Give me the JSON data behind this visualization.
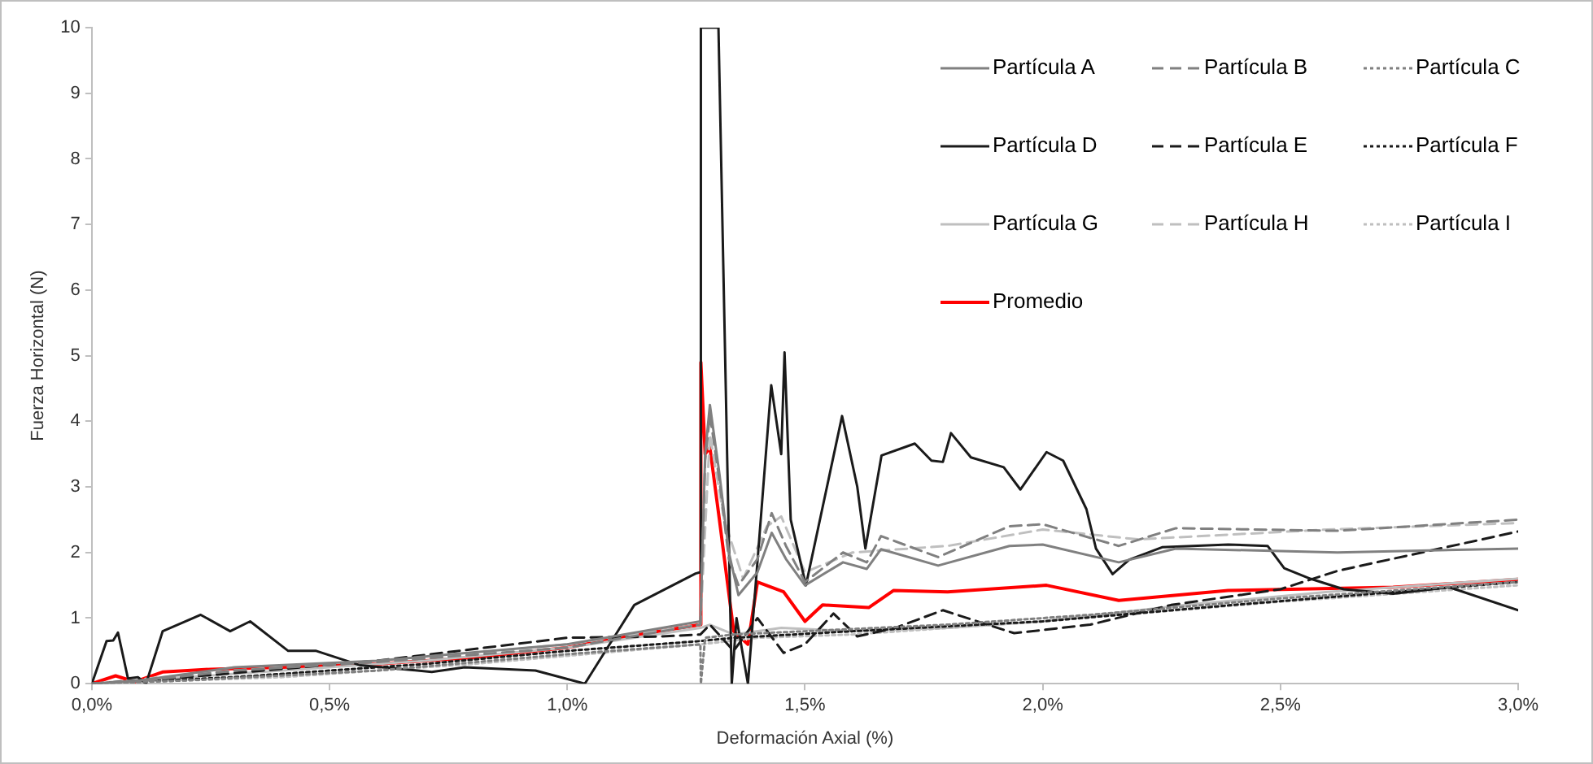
{
  "chart_data": {
    "type": "line",
    "xlabel": "Deformación Axial (%)",
    "ylabel": "Fuerza Horizontal (N)",
    "xlim": [
      0,
      3
    ],
    "ylim": [
      0,
      10
    ],
    "xticks": [
      {
        "value": 0,
        "label": "0,0%"
      },
      {
        "value": 0.5,
        "label": "0,5%"
      },
      {
        "value": 1,
        "label": "1,0%"
      },
      {
        "value": 1.5,
        "label": "1,5%"
      },
      {
        "value": 2,
        "label": "2,0%"
      },
      {
        "value": 2.5,
        "label": "2,5%"
      },
      {
        "value": 3,
        "label": "3,0%"
      }
    ],
    "yticks": [
      0,
      1,
      2,
      3,
      4,
      5,
      6,
      7,
      8,
      9,
      10
    ],
    "legend": "top right",
    "series": [
      {
        "name": "Partícula A",
        "color": "#808080",
        "line_style": "solid",
        "x": [
          0,
          0.1,
          0.3,
          0.6,
          1.0,
          1.2,
          1.28,
          1.29,
          1.3,
          1.32,
          1.34,
          1.36,
          1.4,
          1.43,
          1.46,
          1.5,
          1.58,
          1.63,
          1.66,
          1.78,
          1.93,
          2.0,
          2.16,
          2.28,
          2.62,
          3.0
        ],
        "values": [
          0,
          0.05,
          0.25,
          0.35,
          0.6,
          0.85,
          0.95,
          3.5,
          4.25,
          3.2,
          2.0,
          1.35,
          1.7,
          2.3,
          1.9,
          1.5,
          1.85,
          1.75,
          2.05,
          1.8,
          2.1,
          2.12,
          1.85,
          2.06,
          2.0,
          2.06
        ]
      },
      {
        "name": "Partícula B",
        "color": "#808080",
        "line_style": "dashed",
        "x": [
          0,
          0.1,
          0.3,
          0.6,
          1.0,
          1.2,
          1.28,
          1.29,
          1.3,
          1.32,
          1.34,
          1.36,
          1.4,
          1.43,
          1.46,
          1.5,
          1.58,
          1.63,
          1.66,
          1.78,
          1.93,
          2.0,
          2.16,
          2.28,
          2.62,
          3.0
        ],
        "values": [
          0,
          0.04,
          0.2,
          0.33,
          0.55,
          0.8,
          0.9,
          3.4,
          4.1,
          3.1,
          1.9,
          1.5,
          1.9,
          2.6,
          2.1,
          1.55,
          2.0,
          1.85,
          2.25,
          1.93,
          2.4,
          2.43,
          2.1,
          2.37,
          2.33,
          2.5
        ]
      },
      {
        "name": "Partícula C",
        "color": "#808080",
        "line_style": "dotted",
        "x": [
          0,
          0.2,
          0.6,
          1.0,
          1.28,
          1.281,
          1.29,
          1.35,
          1.5,
          1.8,
          2.1,
          2.5,
          3.0
        ],
        "values": [
          0,
          0.05,
          0.2,
          0.45,
          0.6,
          0,
          0.7,
          0.75,
          0.8,
          0.9,
          1.05,
          1.3,
          1.55
        ]
      },
      {
        "name": "Partícula D",
        "color": "#1a1a1a",
        "line_style": "solid",
        "x": [
          0,
          0.031,
          0.045,
          0.055,
          0.076,
          0.097,
          0.114,
          0.149,
          0.229,
          0.291,
          0.333,
          0.413,
          0.472,
          0.565,
          0.715,
          0.784,
          0.933,
          1.037,
          1.141,
          1.27,
          1.28,
          1.281,
          1.3,
          1.318,
          1.346,
          1.356,
          1.38,
          1.429,
          1.45,
          1.457,
          1.47,
          1.502,
          1.578,
          1.61,
          1.627,
          1.661,
          1.731,
          1.766,
          1.79,
          1.807,
          1.849,
          1.918,
          1.953,
          2.008,
          2.043,
          2.092,
          2.112,
          2.147,
          2.182,
          2.251,
          2.39,
          2.473,
          2.508,
          2.563,
          2.633,
          2.737,
          2.855,
          3.0
        ],
        "values": [
          0,
          0.65,
          0.66,
          0.78,
          0.08,
          0.1,
          0,
          0.8,
          1.05,
          0.8,
          0.95,
          0.5,
          0.5,
          0.28,
          0.18,
          0.25,
          0.2,
          0,
          1.2,
          1.68,
          1.7,
          10,
          10,
          10,
          0,
          1.0,
          0,
          4.55,
          3.5,
          5.05,
          2.5,
          1.5,
          4.08,
          3.0,
          2.06,
          3.48,
          3.66,
          3.4,
          3.38,
          3.82,
          3.45,
          3.3,
          2.96,
          3.53,
          3.4,
          2.66,
          2.06,
          1.67,
          1.89,
          2.08,
          2.12,
          2.1,
          1.76,
          1.6,
          1.44,
          1.37,
          1.47,
          1.12
        ]
      },
      {
        "name": "Partícula E",
        "color": "#1a1a1a",
        "line_style": "dashed",
        "x": [
          0,
          0.2,
          0.6,
          1.0,
          1.2,
          1.28,
          1.3,
          1.35,
          1.4,
          1.455,
          1.5,
          1.56,
          1.61,
          1.69,
          1.79,
          1.94,
          2.1,
          2.27,
          2.5,
          2.62,
          3.0
        ],
        "values": [
          0,
          0.1,
          0.35,
          0.7,
          0.72,
          0.75,
          0.9,
          0.5,
          1.0,
          0.47,
          0.6,
          1.07,
          0.72,
          0.85,
          1.12,
          0.77,
          0.9,
          1.2,
          1.44,
          1.72,
          2.32
        ]
      },
      {
        "name": "Partícula F",
        "color": "#1a1a1a",
        "line_style": "dotted",
        "x": [
          0,
          0.3,
          0.7,
          1.0,
          1.28,
          1.35,
          1.6,
          2.0,
          2.4,
          3.0
        ],
        "values": [
          0,
          0.1,
          0.3,
          0.5,
          0.65,
          0.7,
          0.8,
          0.95,
          1.2,
          1.55
        ]
      },
      {
        "name": "Partícula G",
        "color": "#bfbfbf",
        "line_style": "solid",
        "x": [
          0,
          0.3,
          0.7,
          1.0,
          1.28,
          1.3,
          1.35,
          1.45,
          1.6,
          1.8,
          2.0,
          2.3,
          2.6,
          3.0
        ],
        "values": [
          0,
          0.15,
          0.35,
          0.55,
          0.85,
          0.9,
          0.75,
          0.85,
          0.8,
          0.85,
          0.95,
          1.2,
          1.4,
          1.6
        ]
      },
      {
        "name": "Partícula H",
        "color": "#bfbfbf",
        "line_style": "dashed",
        "x": [
          0,
          0.3,
          0.7,
          1.0,
          1.28,
          1.3,
          1.33,
          1.37,
          1.42,
          1.45,
          1.5,
          1.6,
          1.8,
          2.0,
          2.2,
          2.6,
          3.0
        ],
        "values": [
          0,
          0.2,
          0.4,
          0.6,
          0.9,
          3.8,
          2.5,
          1.6,
          2.4,
          2.55,
          1.7,
          2.0,
          2.1,
          2.35,
          2.2,
          2.35,
          2.45
        ]
      },
      {
        "name": "Partícula I",
        "color": "#bfbfbf",
        "line_style": "dotted",
        "x": [
          0,
          0.4,
          0.8,
          1.28,
          1.4,
          1.6,
          2.0,
          2.5,
          3.0
        ],
        "values": [
          0,
          0.1,
          0.3,
          0.6,
          0.7,
          0.75,
          0.95,
          1.25,
          1.5
        ]
      },
      {
        "name": "Promedio",
        "color": "#ff0000",
        "line_style": "solid",
        "x": [
          0,
          0.05,
          0.09,
          0.15,
          0.25,
          0.4,
          0.6,
          0.8,
          1.0,
          1.15,
          1.28,
          1.281,
          1.29,
          1.3,
          1.32,
          1.35,
          1.38,
          1.4,
          1.455,
          1.5,
          1.537,
          1.634,
          1.686,
          1.8,
          2.008,
          2.16,
          2.39,
          2.737,
          3.0
        ],
        "values": [
          0,
          0.12,
          0.03,
          0.18,
          0.22,
          0.25,
          0.3,
          0.4,
          0.55,
          0.75,
          0.9,
          4.9,
          3.5,
          3.6,
          2.5,
          0.8,
          0.6,
          1.55,
          1.4,
          0.95,
          1.2,
          1.16,
          1.42,
          1.4,
          1.5,
          1.27,
          1.42,
          1.47,
          1.59
        ]
      }
    ]
  }
}
